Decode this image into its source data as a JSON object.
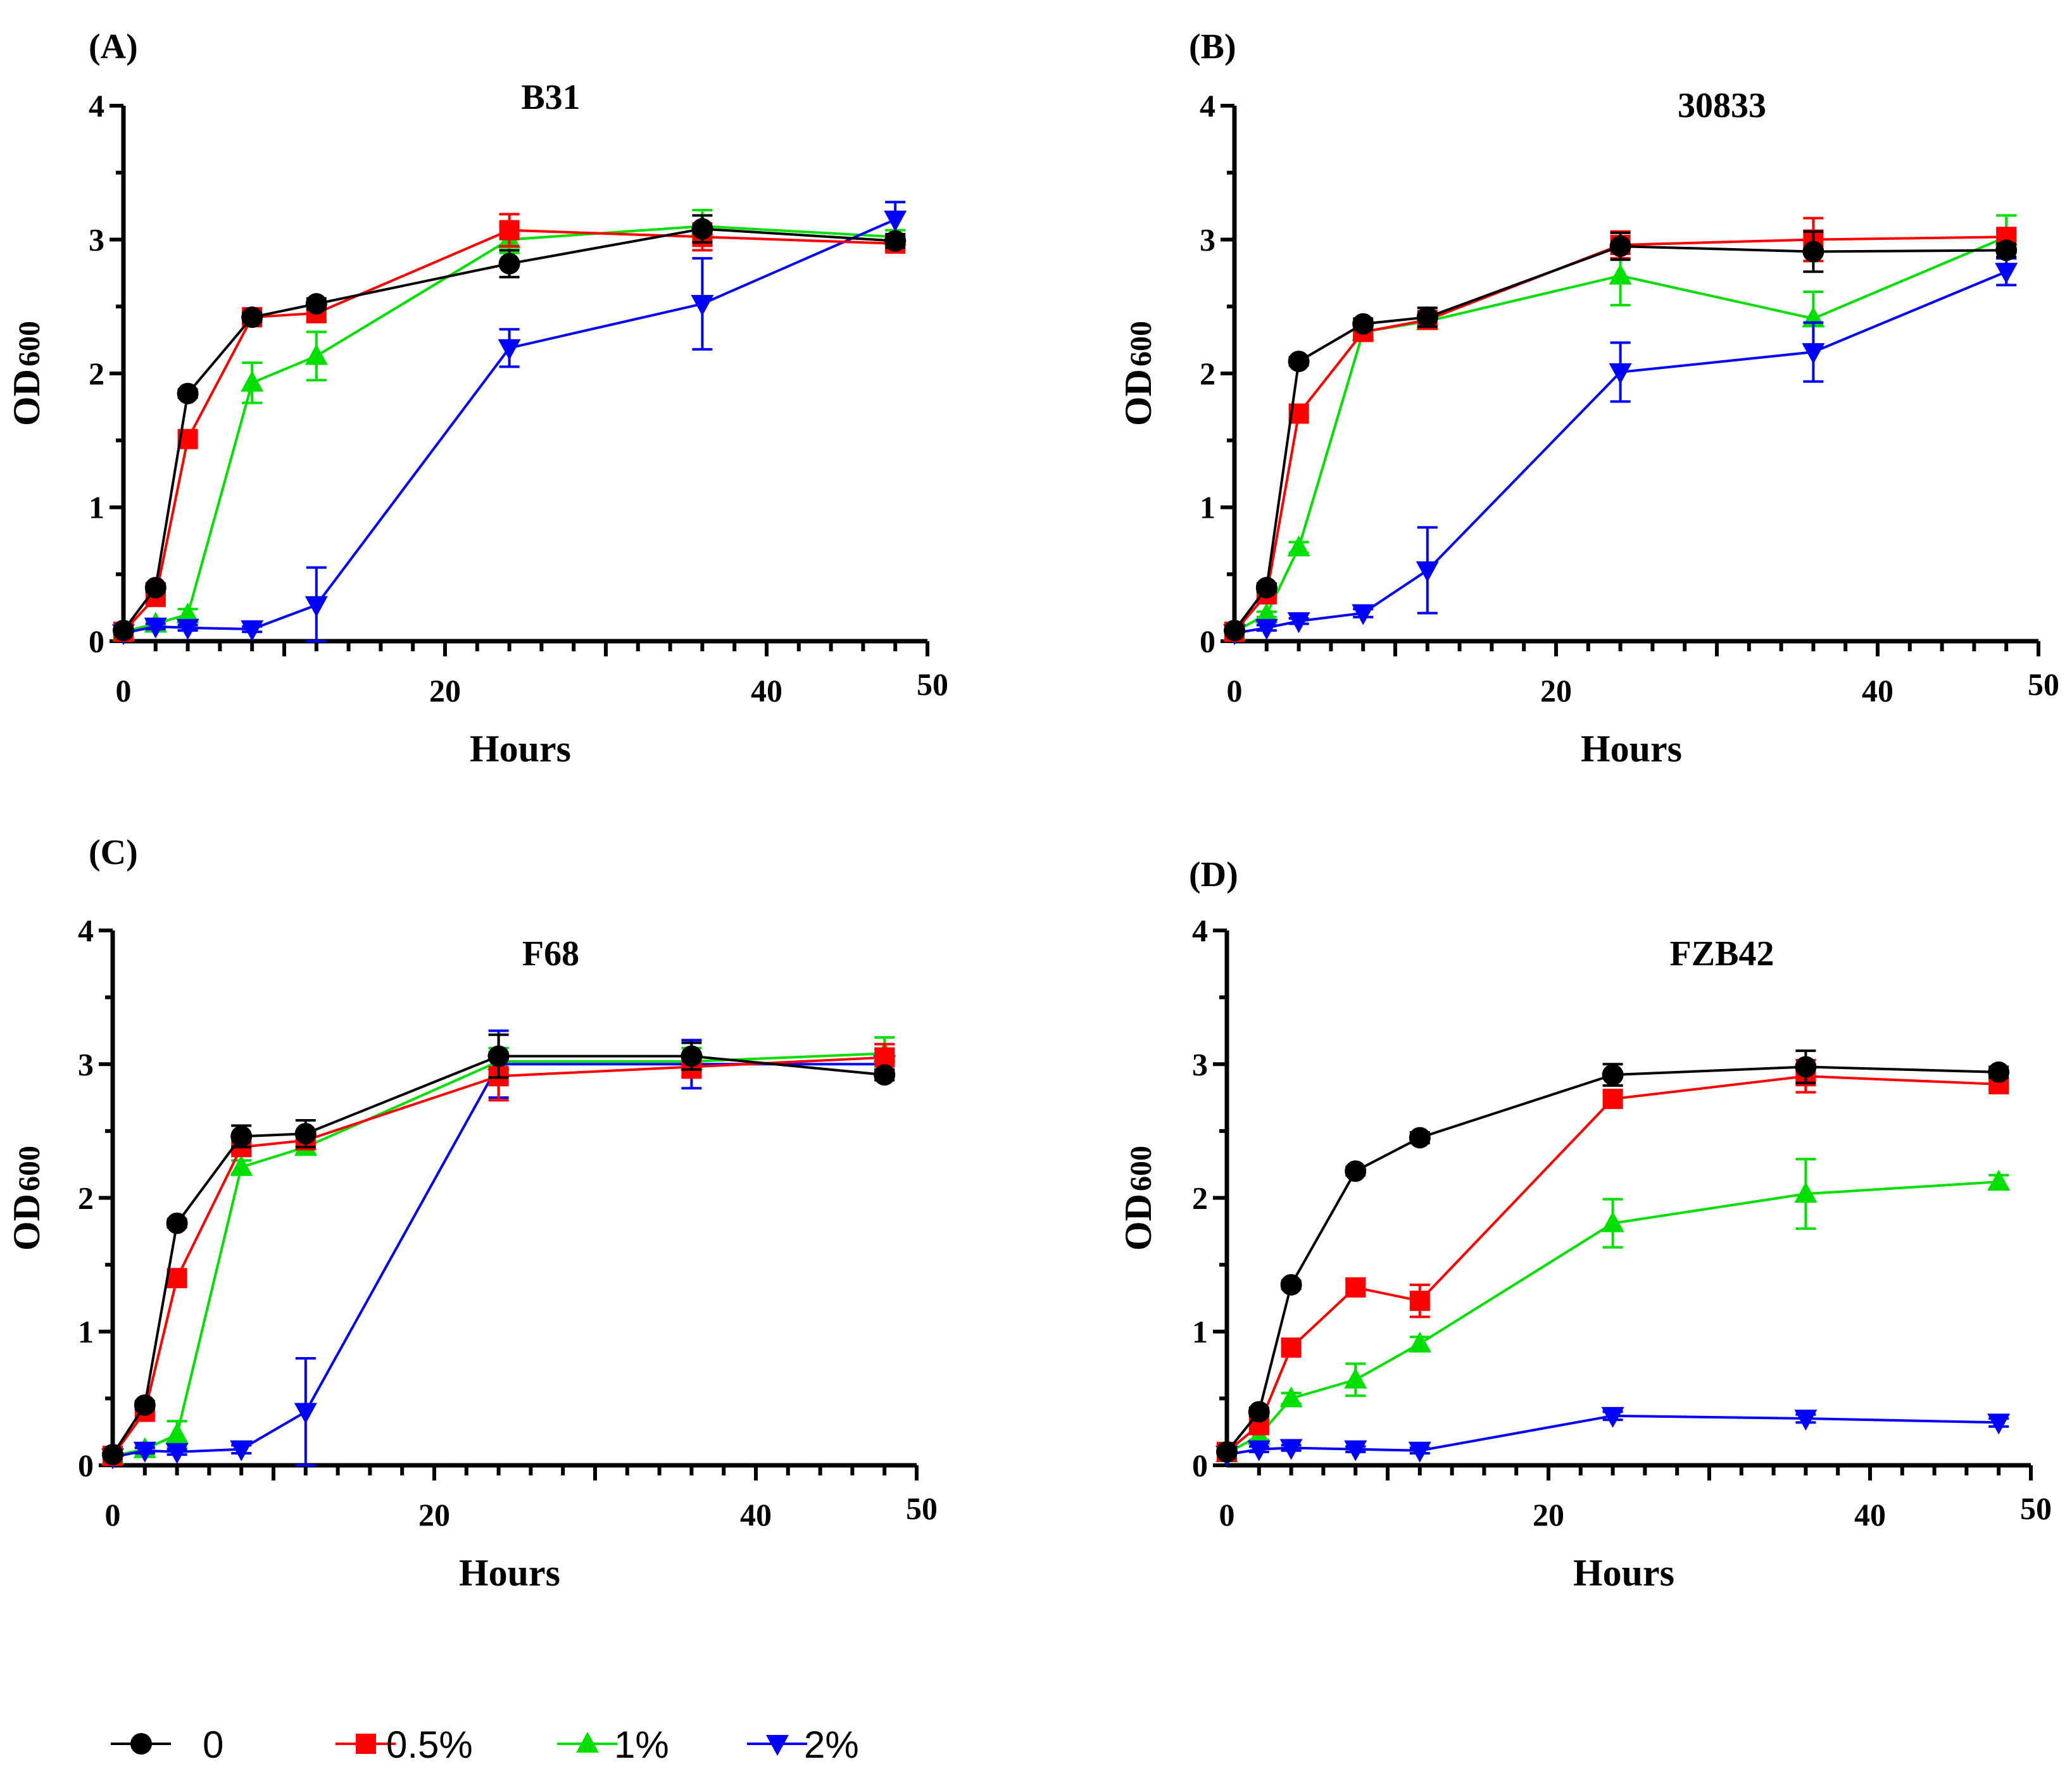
{
  "legend": {
    "entries": [
      {
        "label": "0",
        "color": "#000000",
        "marker": "circle"
      },
      {
        "label": "0.5%",
        "color": "#ff0000",
        "marker": "square"
      },
      {
        "label": "1%",
        "color": "#00e000",
        "marker": "triangle-up"
      },
      {
        "label": "2%",
        "color": "#0000ff",
        "marker": "triangle-down"
      }
    ]
  },
  "chart_data": [
    {
      "type": "line",
      "panel_label": "(A)",
      "title": "B31",
      "xlabel": "Hours",
      "ylabel": "OD",
      "ylabel_sub": "600",
      "xlim": [
        0,
        50
      ],
      "ylim": [
        0,
        4
      ],
      "xticks": [
        0,
        20,
        40,
        50
      ],
      "yticks": [
        0,
        1,
        2,
        3,
        4
      ],
      "x": [
        0,
        2,
        4,
        8,
        12,
        24,
        36,
        48
      ],
      "series": [
        {
          "name": "0",
          "color": "#000000",
          "marker": "circle",
          "values": [
            0.08,
            0.4,
            1.85,
            2.42,
            2.52,
            2.82,
            3.08,
            2.99
          ],
          "errors": [
            0.02,
            0.03,
            0.03,
            0.03,
            0.04,
            0.1,
            0.1,
            0.05
          ]
        },
        {
          "name": "0.5%",
          "color": "#ff0000",
          "marker": "square",
          "values": [
            0.07,
            0.33,
            1.51,
            2.42,
            2.45,
            3.07,
            3.02,
            2.97
          ],
          "errors": [
            0.02,
            0.03,
            0.04,
            0.04,
            0.06,
            0.12,
            0.1,
            0.04
          ]
        },
        {
          "name": "1%",
          "color": "#00e000",
          "marker": "triangle-up",
          "values": [
            0.07,
            0.13,
            0.2,
            1.93,
            2.13,
            3.0,
            3.1,
            3.02
          ],
          "errors": [
            0.01,
            0.02,
            0.04,
            0.15,
            0.18,
            0.1,
            0.12,
            0.05
          ]
        },
        {
          "name": "2%",
          "color": "#0000ff",
          "marker": "triangle-down",
          "values": [
            0.06,
            0.11,
            0.1,
            0.09,
            0.27,
            2.19,
            2.52,
            3.15
          ],
          "errors": [
            0.01,
            0.02,
            0.02,
            0.02,
            0.28,
            0.14,
            0.34,
            0.13
          ]
        }
      ]
    },
    {
      "type": "line",
      "panel_label": "(B)",
      "title": "30833",
      "xlabel": "Hours",
      "ylabel": "OD",
      "ylabel_sub": "600",
      "xlim": [
        0,
        50
      ],
      "ylim": [
        0,
        4
      ],
      "xticks": [
        0,
        20,
        40,
        50
      ],
      "yticks": [
        0,
        1,
        2,
        3,
        4
      ],
      "x": [
        0,
        2,
        4,
        8,
        12,
        24,
        36,
        48
      ],
      "series": [
        {
          "name": "0",
          "color": "#000000",
          "marker": "circle",
          "values": [
            0.08,
            0.4,
            2.09,
            2.37,
            2.42,
            2.95,
            2.91,
            2.92
          ],
          "errors": [
            0.02,
            0.03,
            0.03,
            0.04,
            0.07,
            0.1,
            0.15,
            0.05
          ]
        },
        {
          "name": "0.5%",
          "color": "#ff0000",
          "marker": "square",
          "values": [
            0.07,
            0.35,
            1.7,
            2.31,
            2.4,
            2.96,
            3.0,
            3.02
          ],
          "errors": [
            0.02,
            0.03,
            0.04,
            0.04,
            0.05,
            0.1,
            0.16,
            0.05
          ]
        },
        {
          "name": "1%",
          "color": "#00e000",
          "marker": "triangle-up",
          "values": [
            0.07,
            0.2,
            0.7,
            2.31,
            2.39,
            2.73,
            2.41,
            3.02
          ],
          "errors": [
            0.01,
            0.02,
            0.04,
            0.04,
            0.05,
            0.22,
            0.2,
            0.16
          ]
        },
        {
          "name": "2%",
          "color": "#0000ff",
          "marker": "triangle-down",
          "values": [
            0.06,
            0.1,
            0.15,
            0.21,
            0.53,
            2.01,
            2.16,
            2.76
          ],
          "errors": [
            0.01,
            0.02,
            0.02,
            0.03,
            0.32,
            0.22,
            0.22,
            0.1
          ]
        }
      ]
    },
    {
      "type": "line",
      "panel_label": "(C)",
      "title": "F68",
      "xlabel": "Hours",
      "ylabel": "OD",
      "ylabel_sub": "600",
      "xlim": [
        0,
        50
      ],
      "ylim": [
        0,
        4
      ],
      "xticks": [
        0,
        20,
        40,
        50
      ],
      "yticks": [
        0,
        1,
        2,
        3,
        4
      ],
      "x": [
        0,
        2,
        4,
        8,
        12,
        24,
        36,
        48
      ],
      "series": [
        {
          "name": "0",
          "color": "#000000",
          "marker": "circle",
          "values": [
            0.08,
            0.45,
            1.81,
            2.46,
            2.48,
            3.06,
            3.06,
            2.92
          ],
          "errors": [
            0.02,
            0.03,
            0.03,
            0.08,
            0.1,
            0.16,
            0.1,
            0.04
          ]
        },
        {
          "name": "0.5%",
          "color": "#ff0000",
          "marker": "square",
          "values": [
            0.07,
            0.4,
            1.4,
            2.38,
            2.43,
            2.91,
            2.98,
            3.05
          ],
          "errors": [
            0.02,
            0.03,
            0.04,
            0.05,
            0.06,
            0.18,
            0.08,
            0.1
          ]
        },
        {
          "name": "1%",
          "color": "#00e000",
          "marker": "triangle-up",
          "values": [
            0.07,
            0.12,
            0.23,
            2.23,
            2.38,
            3.02,
            3.02,
            3.08
          ],
          "errors": [
            0.01,
            0.02,
            0.1,
            0.05,
            0.05,
            0.1,
            0.1,
            0.12
          ]
        },
        {
          "name": "2%",
          "color": "#0000ff",
          "marker": "triangle-down",
          "values": [
            0.06,
            0.11,
            0.1,
            0.12,
            0.4,
            3.0,
            3.0,
            3.0
          ],
          "errors": [
            0.01,
            0.02,
            0.02,
            0.03,
            0.4,
            0.25,
            0.18,
            0.05
          ]
        }
      ]
    },
    {
      "type": "line",
      "panel_label": "(D)",
      "title": "FZB42",
      "xlabel": "Hours",
      "ylabel": "OD",
      "ylabel_sub": "600",
      "xlim": [
        0,
        50
      ],
      "ylim": [
        0,
        4
      ],
      "xticks": [
        0,
        20,
        40,
        50
      ],
      "yticks": [
        0,
        1,
        2,
        3,
        4
      ],
      "x": [
        0,
        2,
        4,
        8,
        12,
        24,
        36,
        48
      ],
      "series": [
        {
          "name": "0",
          "color": "#000000",
          "marker": "circle",
          "values": [
            0.1,
            0.4,
            1.35,
            2.2,
            2.45,
            2.92,
            2.98,
            2.94
          ],
          "errors": [
            0.02,
            0.03,
            0.03,
            0.03,
            0.04,
            0.08,
            0.12,
            0.04
          ]
        },
        {
          "name": "0.5%",
          "color": "#ff0000",
          "marker": "square",
          "values": [
            0.1,
            0.3,
            0.88,
            1.33,
            1.23,
            2.74,
            2.91,
            2.85
          ],
          "errors": [
            0.02,
            0.03,
            0.04,
            0.05,
            0.12,
            0.06,
            0.12,
            0.04
          ]
        },
        {
          "name": "1%",
          "color": "#00e000",
          "marker": "triangle-up",
          "values": [
            0.09,
            0.22,
            0.5,
            0.64,
            0.91,
            1.81,
            2.03,
            2.12
          ],
          "errors": [
            0.02,
            0.03,
            0.04,
            0.12,
            0.05,
            0.18,
            0.26,
            0.05
          ]
        },
        {
          "name": "2%",
          "color": "#0000ff",
          "marker": "triangle-down",
          "values": [
            0.08,
            0.12,
            0.13,
            0.12,
            0.11,
            0.37,
            0.35,
            0.32
          ],
          "errors": [
            0.01,
            0.02,
            0.02,
            0.02,
            0.02,
            0.03,
            0.03,
            0.03
          ]
        }
      ]
    }
  ]
}
